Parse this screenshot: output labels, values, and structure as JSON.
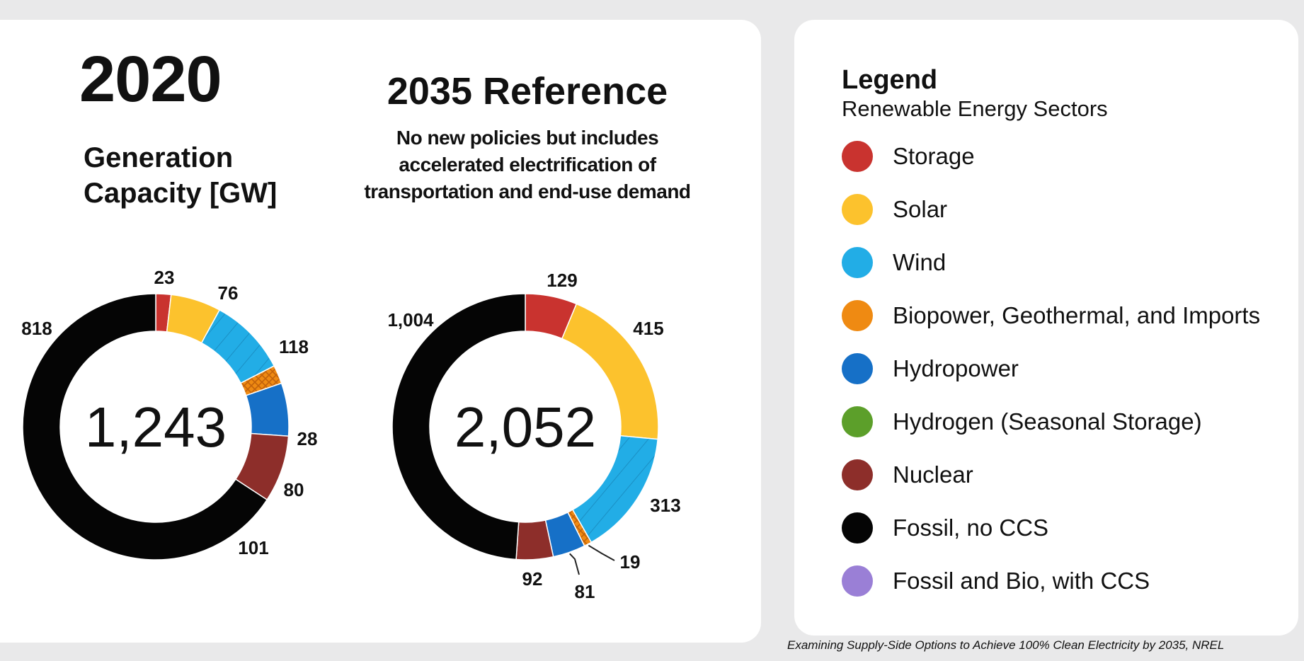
{
  "chart_data": [
    {
      "type": "pie",
      "title": "2020",
      "subtitle": "Generation Capacity [GW]",
      "center_total": "1,243",
      "slices": [
        {
          "label": "Storage",
          "value": 23,
          "display": "23"
        },
        {
          "label": "Solar",
          "value": 76,
          "display": "76"
        },
        {
          "label": "Wind",
          "value": 118,
          "display": "118"
        },
        {
          "label": "Biopower, Geothermal, and Imports",
          "value": 28,
          "display": "28"
        },
        {
          "label": "Hydropower",
          "value": 80,
          "display": "80"
        },
        {
          "label": "Nuclear",
          "value": 101,
          "display": "101"
        },
        {
          "label": "Fossil, no CCS",
          "value": 818,
          "display": "818"
        }
      ]
    },
    {
      "type": "pie",
      "title": "2035 Reference",
      "subtitle": "No new policies but includes accelerated electrification of transportation and end-use demand",
      "center_total": "2,052",
      "slices": [
        {
          "label": "Storage",
          "value": 129,
          "display": "129"
        },
        {
          "label": "Solar",
          "value": 415,
          "display": "415"
        },
        {
          "label": "Wind",
          "value": 313,
          "display": "313"
        },
        {
          "label": "Biopower, Geothermal, and Imports",
          "value": 19,
          "display": "19"
        },
        {
          "label": "Hydropower",
          "value": 81,
          "display": "81"
        },
        {
          "label": "Nuclear",
          "value": 92,
          "display": "92"
        },
        {
          "label": "Fossil, no CCS",
          "value": 1004,
          "display": "1,004"
        }
      ]
    }
  ],
  "chart1": {
    "title": "2020",
    "subtitle_line1": "Generation",
    "subtitle_line2": "Capacity [GW]"
  },
  "chart2": {
    "title": "2035 Reference",
    "subtitle_line1": "No new policies but includes",
    "subtitle_line2": "accelerated electrification of",
    "subtitle_line3": "transportation and end-use demand"
  },
  "legend": {
    "title": "Legend",
    "subtitle": "Renewable Energy Sectors",
    "items": [
      {
        "label": "Storage",
        "color": "#c9332f"
      },
      {
        "label": "Solar",
        "color": "#fcc22d"
      },
      {
        "label": "Wind",
        "color": "#22ade6"
      },
      {
        "label": "Biopower, Geothermal, and Imports",
        "color": "#ef8a12"
      },
      {
        "label": "Hydropower",
        "color": "#1670c7"
      },
      {
        "label": "Hydrogen (Seasonal Storage)",
        "color": "#5c9f2a"
      },
      {
        "label": "Nuclear",
        "color": "#8d2e2a"
      },
      {
        "label": "Fossil, no CCS",
        "color": "#050505"
      },
      {
        "label": "Fossil and Bio, with CCS",
        "color": "#9a7fd6"
      }
    ]
  },
  "source": "Examining Supply-Side Options to Achieve 100% Clean Electricity by 2035, NREL"
}
